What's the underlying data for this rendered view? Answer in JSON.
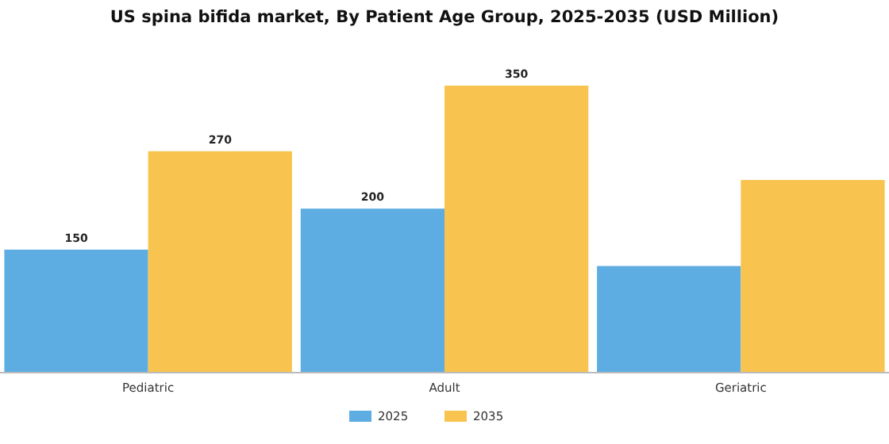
{
  "chart_data": {
    "type": "bar",
    "title": "US spina bifida market, By Patient Age Group, 2025-2035 (USD Million)",
    "categories": [
      "Pediatric",
      "Adult",
      "Geriatric"
    ],
    "series": [
      {
        "name": "2025",
        "color": "#5dade2",
        "values": [
          150,
          200,
          130
        ],
        "value_labels": [
          "150",
          "200",
          null
        ]
      },
      {
        "name": "2035",
        "color": "#f8c44f",
        "values": [
          270,
          350,
          235
        ],
        "value_labels": [
          "270",
          "350",
          null
        ]
      }
    ],
    "tick_labels": "x",
    "legend": "bottom"
  }
}
